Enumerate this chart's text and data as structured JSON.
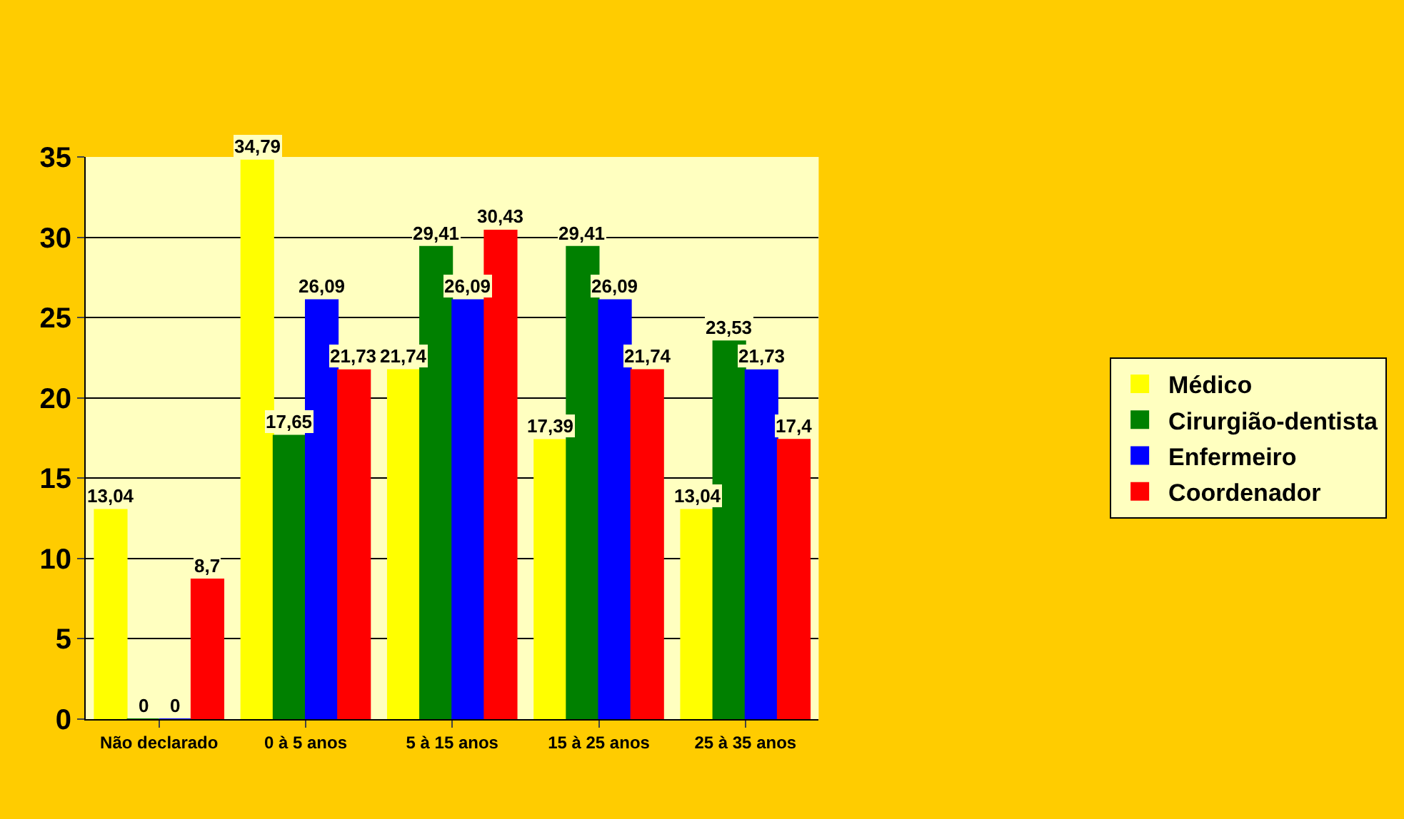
{
  "chart_data": {
    "type": "bar",
    "categories": [
      "Não declarado",
      "0 à 5 anos",
      "5 à 15 anos",
      "15 à 25 anos",
      "25 à 35 anos"
    ],
    "series": [
      {
        "name": "Médico",
        "color": "#ffff00",
        "values": [
          13.04,
          34.79,
          21.74,
          17.39,
          13.04
        ],
        "value_labels": [
          "13,04",
          "34,79",
          "21,74",
          "17,39",
          "13,04"
        ]
      },
      {
        "name": "Cirurgião-dentista",
        "color": "#008000",
        "values": [
          0,
          17.65,
          29.41,
          29.41,
          23.53
        ],
        "value_labels": [
          "0",
          "17,65",
          "29,41",
          "29,41",
          "23,53"
        ]
      },
      {
        "name": "Enfermeiro",
        "color": "#0000ff",
        "values": [
          0,
          26.09,
          26.09,
          26.09,
          21.73
        ],
        "value_labels": [
          "0",
          "26,09",
          "26,09",
          "26,09",
          "21,73"
        ]
      },
      {
        "name": "Coordenador",
        "color": "#ff0000",
        "values": [
          8.7,
          21.73,
          30.43,
          21.74,
          17.4
        ],
        "value_labels": [
          "8,7",
          "21,73",
          "30,43",
          "21,74",
          "17,4"
        ]
      }
    ],
    "ylim": [
      0,
      35
    ],
    "yticks": [
      0,
      5,
      10,
      15,
      20,
      25,
      30,
      35
    ],
    "grid": "y",
    "legend": "right"
  }
}
